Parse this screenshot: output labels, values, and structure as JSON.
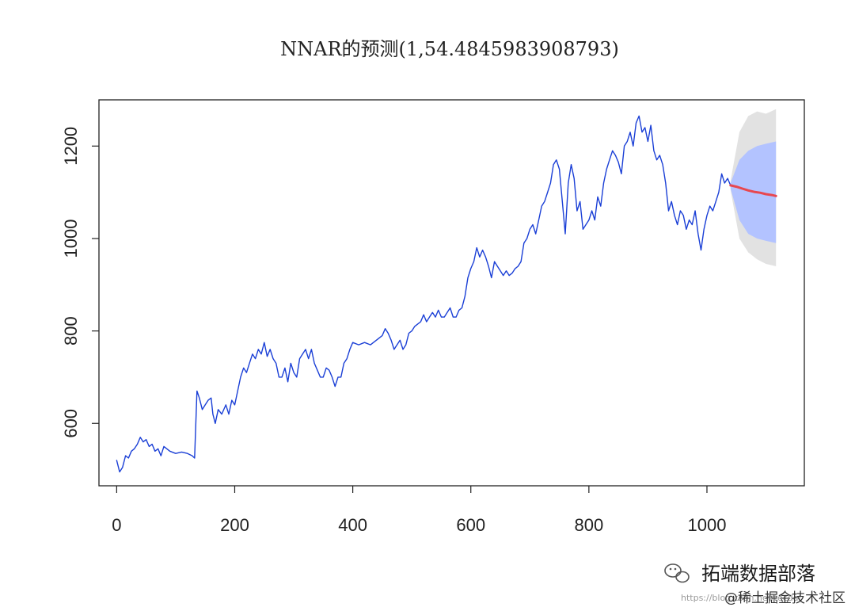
{
  "chart_data": {
    "type": "line",
    "title": "NNAR的预测(1,54.4845983908793)",
    "xlabel": "",
    "ylabel": "",
    "xlim": [
      -30,
      1165
    ],
    "ylim": [
      465,
      1300
    ],
    "x_ticks": [
      0,
      200,
      400,
      600,
      800,
      1000
    ],
    "y_ticks": [
      600,
      800,
      1000,
      1200
    ],
    "series": [
      {
        "color": "#1a3fd6",
        "points": [
          [
            0,
            520
          ],
          [
            5,
            495
          ],
          [
            10,
            505
          ],
          [
            15,
            530
          ],
          [
            20,
            525
          ],
          [
            25,
            540
          ],
          [
            30,
            545
          ],
          [
            35,
            555
          ],
          [
            40,
            570
          ],
          [
            45,
            560
          ],
          [
            50,
            565
          ],
          [
            55,
            550
          ],
          [
            60,
            555
          ],
          [
            65,
            540
          ],
          [
            70,
            545
          ],
          [
            75,
            530
          ],
          [
            80,
            550
          ],
          [
            85,
            545
          ],
          [
            90,
            540
          ],
          [
            100,
            535
          ],
          [
            110,
            538
          ],
          [
            120,
            535
          ],
          [
            128,
            530
          ],
          [
            132,
            525
          ],
          [
            136,
            670
          ],
          [
            140,
            655
          ],
          [
            145,
            630
          ],
          [
            150,
            640
          ],
          [
            155,
            650
          ],
          [
            160,
            655
          ],
          [
            163,
            620
          ],
          [
            167,
            600
          ],
          [
            172,
            630
          ],
          [
            178,
            620
          ],
          [
            185,
            640
          ],
          [
            190,
            620
          ],
          [
            195,
            650
          ],
          [
            200,
            640
          ],
          [
            205,
            670
          ],
          [
            210,
            700
          ],
          [
            215,
            720
          ],
          [
            220,
            710
          ],
          [
            225,
            730
          ],
          [
            230,
            750
          ],
          [
            235,
            740
          ],
          [
            240,
            760
          ],
          [
            245,
            750
          ],
          [
            250,
            775
          ],
          [
            255,
            745
          ],
          [
            260,
            760
          ],
          [
            265,
            740
          ],
          [
            270,
            730
          ],
          [
            275,
            700
          ],
          [
            280,
            700
          ],
          [
            285,
            720
          ],
          [
            290,
            690
          ],
          [
            295,
            730
          ],
          [
            300,
            710
          ],
          [
            305,
            700
          ],
          [
            310,
            740
          ],
          [
            315,
            750
          ],
          [
            320,
            760
          ],
          [
            325,
            740
          ],
          [
            330,
            760
          ],
          [
            335,
            730
          ],
          [
            340,
            715
          ],
          [
            345,
            700
          ],
          [
            350,
            700
          ],
          [
            355,
            720
          ],
          [
            360,
            715
          ],
          [
            365,
            700
          ],
          [
            370,
            680
          ],
          [
            375,
            700
          ],
          [
            380,
            700
          ],
          [
            385,
            730
          ],
          [
            390,
            740
          ],
          [
            395,
            760
          ],
          [
            400,
            775
          ],
          [
            410,
            770
          ],
          [
            420,
            775
          ],
          [
            430,
            770
          ],
          [
            440,
            780
          ],
          [
            450,
            790
          ],
          [
            455,
            805
          ],
          [
            460,
            795
          ],
          [
            465,
            780
          ],
          [
            470,
            760
          ],
          [
            475,
            770
          ],
          [
            480,
            780
          ],
          [
            485,
            760
          ],
          [
            490,
            770
          ],
          [
            495,
            795
          ],
          [
            500,
            800
          ],
          [
            505,
            810
          ],
          [
            510,
            815
          ],
          [
            515,
            820
          ],
          [
            520,
            835
          ],
          [
            525,
            820
          ],
          [
            530,
            830
          ],
          [
            535,
            840
          ],
          [
            540,
            830
          ],
          [
            545,
            845
          ],
          [
            550,
            830
          ],
          [
            555,
            830
          ],
          [
            560,
            840
          ],
          [
            565,
            850
          ],
          [
            570,
            830
          ],
          [
            575,
            830
          ],
          [
            580,
            845
          ],
          [
            585,
            850
          ],
          [
            590,
            875
          ],
          [
            595,
            915
          ],
          [
            600,
            935
          ],
          [
            605,
            950
          ],
          [
            610,
            980
          ],
          [
            615,
            960
          ],
          [
            620,
            975
          ],
          [
            625,
            960
          ],
          [
            630,
            940
          ],
          [
            635,
            915
          ],
          [
            640,
            950
          ],
          [
            645,
            940
          ],
          [
            650,
            930
          ],
          [
            655,
            920
          ],
          [
            660,
            930
          ],
          [
            665,
            920
          ],
          [
            670,
            925
          ],
          [
            675,
            935
          ],
          [
            680,
            940
          ],
          [
            685,
            950
          ],
          [
            690,
            990
          ],
          [
            695,
            1000
          ],
          [
            700,
            1020
          ],
          [
            705,
            1030
          ],
          [
            710,
            1010
          ],
          [
            715,
            1040
          ],
          [
            720,
            1070
          ],
          [
            725,
            1080
          ],
          [
            730,
            1100
          ],
          [
            735,
            1120
          ],
          [
            740,
            1160
          ],
          [
            745,
            1170
          ],
          [
            750,
            1150
          ],
          [
            755,
            1080
          ],
          [
            760,
            1010
          ],
          [
            765,
            1120
          ],
          [
            770,
            1160
          ],
          [
            775,
            1130
          ],
          [
            780,
            1060
          ],
          [
            785,
            1080
          ],
          [
            790,
            1020
          ],
          [
            795,
            1030
          ],
          [
            800,
            1040
          ],
          [
            805,
            1060
          ],
          [
            810,
            1040
          ],
          [
            815,
            1090
          ],
          [
            820,
            1070
          ],
          [
            825,
            1120
          ],
          [
            830,
            1150
          ],
          [
            835,
            1170
          ],
          [
            840,
            1190
          ],
          [
            845,
            1180
          ],
          [
            850,
            1165
          ],
          [
            855,
            1140
          ],
          [
            860,
            1200
          ],
          [
            865,
            1210
          ],
          [
            870,
            1230
          ],
          [
            875,
            1200
          ],
          [
            880,
            1250
          ],
          [
            885,
            1265
          ],
          [
            890,
            1230
          ],
          [
            895,
            1240
          ],
          [
            900,
            1210
          ],
          [
            905,
            1245
          ],
          [
            910,
            1190
          ],
          [
            915,
            1170
          ],
          [
            920,
            1180
          ],
          [
            925,
            1160
          ],
          [
            930,
            1120
          ],
          [
            935,
            1060
          ],
          [
            940,
            1080
          ],
          [
            945,
            1050
          ],
          [
            950,
            1030
          ],
          [
            955,
            1060
          ],
          [
            960,
            1050
          ],
          [
            965,
            1020
          ],
          [
            970,
            1040
          ],
          [
            975,
            1030
          ],
          [
            980,
            1060
          ],
          [
            985,
            1010
          ],
          [
            990,
            975
          ],
          [
            995,
            1020
          ],
          [
            1000,
            1050
          ],
          [
            1005,
            1070
          ],
          [
            1010,
            1060
          ],
          [
            1015,
            1080
          ],
          [
            1020,
            1100
          ],
          [
            1025,
            1140
          ],
          [
            1030,
            1120
          ],
          [
            1035,
            1130
          ],
          [
            1040,
            1115
          ]
        ]
      },
      {
        "color": "#e8474f",
        "points": [
          [
            1040,
            1115
          ],
          [
            1050,
            1112
          ],
          [
            1060,
            1108
          ],
          [
            1070,
            1104
          ],
          [
            1080,
            1101
          ],
          [
            1090,
            1099
          ],
          [
            1100,
            1096
          ],
          [
            1110,
            1094
          ],
          [
            1117,
            1092
          ]
        ]
      }
    ],
    "bands": [
      {
        "color": "#e2e2e2",
        "x": [
          1040,
          1055,
          1070,
          1085,
          1100,
          1117
        ],
        "lower": [
          1105,
          1000,
          970,
          955,
          945,
          940
        ],
        "upper": [
          1125,
          1230,
          1265,
          1275,
          1270,
          1280
        ]
      },
      {
        "color": "#b3c3ff",
        "x": [
          1040,
          1055,
          1070,
          1085,
          1100,
          1117
        ],
        "lower": [
          1108,
          1040,
          1010,
          1000,
          995,
          990
        ],
        "upper": [
          1120,
          1170,
          1190,
          1200,
          1205,
          1210
        ]
      }
    ]
  },
  "watermark": {
    "brand": "拓端数据部落",
    "sub": "@稀土掘金技术社区",
    "url": "https://blog.csdn.net/tecdat"
  }
}
